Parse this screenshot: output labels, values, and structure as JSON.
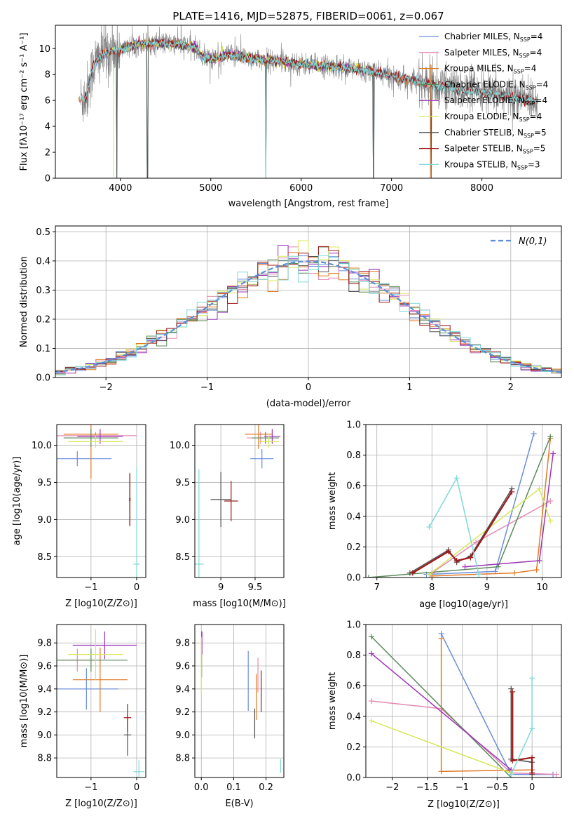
{
  "figure_title": "PLATE=1416, MJD=52875, FIBERID=0061, z=0.067",
  "colors": {
    "chabrier_miles": "#6a8ddc",
    "salpeter_miles": "#e48ab4",
    "kroupa_miles": "#e07a22",
    "chabrier_elodie": "#5a8a5a",
    "salpeter_elodie": "#9b35b8",
    "kroupa_elodie": "#d8e85a",
    "chabrier_stelib": "#505050",
    "salpeter_stelib": "#a01818",
    "kroupa_stelib": "#7fd9d9",
    "data_gray": "#808080",
    "normal_dash": "#5b8dd9"
  },
  "chart_data": [
    {
      "id": "spectrum",
      "type": "line",
      "title": "PLATE=1416, MJD=52875, FIBERID=0061, z=0.067",
      "xlabel": "wavelength [Angstrom, rest frame]",
      "ylabel": "Flux [fλ10⁻¹⁷ erg cm⁻² s⁻¹ A⁻¹]",
      "xlim": [
        3280,
        8880
      ],
      "ylim": [
        0,
        11.8
      ],
      "xticks": [
        4000,
        5000,
        6000,
        7000,
        8000
      ],
      "yticks": [
        0,
        2,
        4,
        6,
        8,
        10
      ],
      "legend": {
        "position": "top-right",
        "entries": [
          {
            "label": "Chabrier MILES, N",
            "sub": "SSP",
            "tail": "=4",
            "color": "chabrier_miles"
          },
          {
            "label": "Salpeter MILES, N",
            "sub": "SSP",
            "tail": "=4",
            "color": "salpeter_miles"
          },
          {
            "label": "Kroupa MILES, N",
            "sub": "SSP",
            "tail": "=4",
            "color": "kroupa_miles"
          },
          {
            "label": "Chabrier ELODIE, N",
            "sub": "SSP",
            "tail": "=4",
            "color": "chabrier_elodie"
          },
          {
            "label": "Salpeter ELODIE, N",
            "sub": "SSP",
            "tail": "=4",
            "color": "salpeter_elodie"
          },
          {
            "label": "Kroupa ELODIE, N",
            "sub": "SSP",
            "tail": "=4",
            "color": "kroupa_elodie"
          },
          {
            "label": "Chabrier STELIB, N",
            "sub": "SSP",
            "tail": "=5",
            "color": "chabrier_stelib"
          },
          {
            "label": "Salpeter STELIB, N",
            "sub": "SSP",
            "tail": "=5",
            "color": "salpeter_stelib"
          },
          {
            "label": "Kroupa STELIB, N",
            "sub": "SSP",
            "tail": "=3",
            "color": "kroupa_stelib"
          }
        ]
      },
      "continuum": {
        "x": [
          3560,
          3620,
          3700,
          3800,
          3900,
          4000,
          4100,
          4300,
          4500,
          4700,
          4850,
          4900,
          5000,
          5200,
          5400,
          5600,
          5800,
          6000,
          6200,
          6400,
          6600,
          6800,
          7000,
          7200,
          7400,
          7600,
          7800,
          8000,
          8200,
          8400,
          8600
        ],
        "y": [
          6.0,
          6.3,
          8.7,
          9.6,
          9.8,
          9.9,
          10.2,
          10.4,
          10.4,
          10.3,
          10.0,
          9.4,
          9.2,
          9.5,
          9.3,
          9.1,
          9.0,
          8.8,
          8.7,
          8.6,
          8.4,
          8.2,
          7.9,
          7.6,
          7.3,
          7.0,
          6.8,
          6.6,
          6.4,
          6.2,
          6.0
        ]
      },
      "deep_spikes": [
        3960,
        4300,
        5610,
        6800,
        7440
      ]
    },
    {
      "id": "residuals",
      "type": "step-histogram",
      "xlabel": "(data-model)/error",
      "ylabel": "Normed distribution",
      "xlim": [
        -2.5,
        2.5
      ],
      "ylim": [
        0,
        0.52
      ],
      "xticks": [
        -2,
        -1,
        0,
        1,
        2
      ],
      "yticks": [
        0.0,
        0.1,
        0.2,
        0.3,
        0.4,
        0.5
      ],
      "legend_label": "N(0,1)",
      "bin_width": 0.1
    },
    {
      "id": "age_vs_z",
      "type": "errorbar",
      "xlabel": "Z [log10(Z/Z⊙)]",
      "ylabel": "age [log10(age/yr)]",
      "xlim": [
        -1.75,
        0.2
      ],
      "ylim": [
        8.22,
        10.28
      ],
      "xticks": [
        -1,
        0
      ],
      "yticks": [
        8.5,
        9.0,
        9.5,
        10.0
      ],
      "points": [
        {
          "c": "chabrier_miles",
          "x": -1.3,
          "y": 9.82,
          "xe": 0.75,
          "ye": 0.1
        },
        {
          "c": "salpeter_miles",
          "x": -0.9,
          "y": 10.13,
          "xe": 0.9,
          "ye": 0.05
        },
        {
          "c": "kroupa_miles",
          "x": -1.0,
          "y": 10.15,
          "xe": 0.6,
          "ye": 0.6
        },
        {
          "c": "chabrier_elodie",
          "x": -1.0,
          "y": 10.1,
          "xe": 0.6,
          "ye": 0.12
        },
        {
          "c": "salpeter_elodie",
          "x": -0.8,
          "y": 10.12,
          "xe": 0.5,
          "ye": 0.1
        },
        {
          "c": "kroupa_elodie",
          "x": -0.9,
          "y": 10.05,
          "xe": 0.6,
          "ye": 0.08
        },
        {
          "c": "chabrier_stelib",
          "x": -0.15,
          "y": 9.28,
          "xe": 0.02,
          "ye": 0.35
        },
        {
          "c": "salpeter_stelib",
          "x": -0.15,
          "y": 9.26,
          "xe": 0.02,
          "ye": 0.35
        },
        {
          "c": "kroupa_stelib",
          "x": 0.0,
          "y": 8.4,
          "xe": 0.07,
          "ye": 1.3
        }
      ]
    },
    {
      "id": "age_vs_mass",
      "type": "errorbar",
      "xlabel": "mass [log10(M/M⊙)]",
      "ylabel": "",
      "xlim": [
        8.62,
        9.92
      ],
      "ylim": [
        8.22,
        10.28
      ],
      "xticks": [
        9.0,
        9.5
      ],
      "yticks": [
        8.5,
        9.0,
        9.5,
        10.0
      ],
      "points": [
        {
          "c": "chabrier_miles",
          "x": 9.6,
          "y": 9.82,
          "xe": 0.17,
          "ye": 0.13
        },
        {
          "c": "salpeter_miles",
          "x": 9.58,
          "y": 10.1,
          "xe": 0.2,
          "ye": 0.08
        },
        {
          "c": "kroupa_miles",
          "x": 9.55,
          "y": 10.15,
          "xe": 0.2,
          "ye": 0.2
        },
        {
          "c": "chabrier_elodie",
          "x": 9.65,
          "y": 10.1,
          "xe": 0.2,
          "ye": 0.08
        },
        {
          "c": "salpeter_elodie",
          "x": 9.75,
          "y": 10.12,
          "xe": 0.12,
          "ye": 0.1
        },
        {
          "c": "kroupa_elodie",
          "x": 9.7,
          "y": 10.05,
          "xe": 0.15,
          "ye": 0.08
        },
        {
          "c": "chabrier_stelib",
          "x": 9.0,
          "y": 9.27,
          "xe": 0.15,
          "ye": 0.37
        },
        {
          "c": "salpeter_stelib",
          "x": 9.15,
          "y": 9.25,
          "xe": 0.1,
          "ye": 0.27
        },
        {
          "c": "kroupa_stelib",
          "x": 8.68,
          "y": 8.4,
          "xe": 0.07,
          "ye": 1.28
        }
      ]
    },
    {
      "id": "weight_vs_age",
      "type": "line",
      "xlabel": "age [log10(age/yr)]",
      "ylabel": "mass weight",
      "xlim": [
        6.8,
        10.35
      ],
      "ylim": [
        0,
        1
      ],
      "xticks": [
        7,
        8,
        9,
        10
      ],
      "yticks": [
        0.0,
        0.2,
        0.4,
        0.6,
        0.8,
        1.0
      ],
      "series": [
        {
          "c": "chabrier_miles",
          "x": [
            7.9,
            9.15,
            9.85
          ],
          "y": [
            0.02,
            0.04,
            0.94
          ]
        },
        {
          "c": "salpeter_miles",
          "x": [
            8.0,
            8.8,
            10.15
          ],
          "y": [
            0.03,
            0.23,
            0.5
          ]
        },
        {
          "c": "kroupa_miles",
          "x": [
            8.0,
            9.5,
            9.9,
            10.15
          ],
          "y": [
            0.01,
            0.03,
            0.05,
            0.91
          ]
        },
        {
          "c": "chabrier_elodie",
          "x": [
            6.85,
            9.2,
            10.15
          ],
          "y": [
            0.0,
            0.07,
            0.92
          ]
        },
        {
          "c": "salpeter_elodie",
          "x": [
            8.6,
            9.95,
            10.2
          ],
          "y": [
            0.07,
            0.11,
            0.81
          ]
        },
        {
          "c": "kroupa_elodie",
          "x": [
            7.95,
            9.95,
            10.15
          ],
          "y": [
            0.02,
            0.58,
            0.37
          ]
        },
        {
          "c": "chabrier_stelib",
          "x": [
            7.6,
            8.3,
            8.45,
            8.7,
            9.45
          ],
          "y": [
            0.03,
            0.18,
            0.1,
            0.14,
            0.58
          ]
        },
        {
          "c": "salpeter_stelib",
          "x": [
            7.65,
            8.3,
            8.45,
            8.7,
            9.45
          ],
          "y": [
            0.03,
            0.17,
            0.11,
            0.13,
            0.56
          ]
        },
        {
          "c": "kroupa_stelib",
          "x": [
            7.95,
            8.45,
            8.85
          ],
          "y": [
            0.33,
            0.65,
            0.02
          ]
        }
      ]
    },
    {
      "id": "mass_vs_z",
      "type": "errorbar",
      "xlabel": "Z [log10(Z/Z⊙)]",
      "ylabel": "mass [log10(M/M⊙)]",
      "xlim": [
        -1.75,
        0.2
      ],
      "ylim": [
        8.63,
        9.96
      ],
      "xticks": [
        -1,
        0
      ],
      "yticks": [
        8.8,
        9.0,
        9.2,
        9.4,
        9.6,
        9.8
      ],
      "points": [
        {
          "c": "chabrier_miles",
          "x": -1.1,
          "y": 9.4,
          "xe": 0.7,
          "ye": 0.18
        },
        {
          "c": "salpeter_miles",
          "x": -1.3,
          "y": 9.65,
          "xe": 0.4,
          "ye": 0.1
        },
        {
          "c": "kroupa_miles",
          "x": -0.8,
          "y": 9.48,
          "xe": 0.6,
          "ye": 0.28
        },
        {
          "c": "chabrier_elodie",
          "x": -1.0,
          "y": 9.65,
          "xe": 0.8,
          "ye": 0.1
        },
        {
          "c": "salpeter_elodie",
          "x": -0.7,
          "y": 9.78,
          "xe": 0.7,
          "ye": 0.12
        },
        {
          "c": "kroupa_elodie",
          "x": -0.9,
          "y": 9.7,
          "xe": 0.6,
          "ye": 0.22
        },
        {
          "c": "chabrier_stelib",
          "x": -0.2,
          "y": 9.0,
          "xe": 0.08,
          "ye": 0.18
        },
        {
          "c": "salpeter_stelib",
          "x": -0.2,
          "y": 9.15,
          "xe": 0.08,
          "ye": 0.12
        },
        {
          "c": "kroupa_stelib",
          "x": 0.05,
          "y": 8.68,
          "xe": 0.12,
          "ye": 0.1
        }
      ]
    },
    {
      "id": "mass_vs_ebv",
      "type": "errorbar",
      "xlabel": "E(B-V)",
      "ylabel": "",
      "xlim": [
        -0.02,
        0.255
      ],
      "ylim": [
        8.63,
        9.96
      ],
      "xticks": [
        0.0,
        0.1,
        0.2
      ],
      "yticks": [
        8.8,
        9.0,
        9.2,
        9.4,
        9.6,
        9.8
      ],
      "points": [
        {
          "c": "chabrier_miles",
          "x": 0.145,
          "y": 9.47,
          "ye": 0.26
        },
        {
          "c": "salpeter_miles",
          "x": 0.175,
          "y": 9.52,
          "ye": 0.15
        },
        {
          "c": "kroupa_miles",
          "x": 0.17,
          "y": 9.33,
          "ye": 0.2
        },
        {
          "c": "chabrier_elodie",
          "x": 0.001,
          "y": 9.7,
          "ye": 0.2
        },
        {
          "c": "salpeter_elodie",
          "x": 0.002,
          "y": 9.8,
          "ye": 0.1
        },
        {
          "c": "kroupa_elodie",
          "x": 0.0,
          "y": 9.6,
          "ye": 0.25
        },
        {
          "c": "chabrier_stelib",
          "x": 0.165,
          "y": 9.1,
          "ye": 0.13
        },
        {
          "c": "salpeter_stelib",
          "x": 0.185,
          "y": 9.38,
          "ye": 0.18
        },
        {
          "c": "kroupa_stelib",
          "x": 0.245,
          "y": 8.73,
          "ye": 0.06
        }
      ]
    },
    {
      "id": "weight_vs_z",
      "type": "line",
      "xlabel": "Z [log10(Z/Z⊙)]",
      "ylabel": "mass weight",
      "xlim": [
        -2.38,
        0.42
      ],
      "ylim": [
        0,
        1
      ],
      "xticks": [
        -2.0,
        -1.5,
        -1.0,
        -0.5,
        0.0
      ],
      "yticks": [
        0.0,
        0.2,
        0.4,
        0.6,
        0.8,
        1.0
      ],
      "series": [
        {
          "c": "chabrier_miles",
          "x": [
            -1.3,
            -0.3,
            0.3
          ],
          "y": [
            0.94,
            0.02,
            0.02
          ]
        },
        {
          "c": "salpeter_miles",
          "x": [
            -2.3,
            -1.3,
            -0.3,
            0.35
          ],
          "y": [
            0.5,
            0.45,
            0.03,
            0.02
          ]
        },
        {
          "c": "kroupa_miles",
          "x": [
            -1.3,
            -1.3,
            0.0
          ],
          "y": [
            0.91,
            0.04,
            0.05
          ]
        },
        {
          "c": "chabrier_elodie",
          "x": [
            -2.3,
            -0.3
          ],
          "y": [
            0.92,
            0.0
          ]
        },
        {
          "c": "salpeter_elodie",
          "x": [
            -2.3,
            -0.3
          ],
          "y": [
            0.81,
            0.05
          ]
        },
        {
          "c": "kroupa_elodie",
          "x": [
            -2.3,
            -0.3
          ],
          "y": [
            0.37,
            0.03
          ]
        },
        {
          "c": "chabrier_stelib",
          "x": [
            -0.3,
            -0.3,
            0.0,
            0.0
          ],
          "y": [
            0.58,
            0.12,
            0.1,
            0.02
          ]
        },
        {
          "c": "salpeter_stelib",
          "x": [
            -0.28,
            -0.28,
            0.0,
            0.0
          ],
          "y": [
            0.56,
            0.11,
            0.13,
            0.03
          ]
        },
        {
          "c": "kroupa_stelib",
          "x": [
            0.0,
            0.0,
            -0.3
          ],
          "y": [
            0.65,
            0.32,
            0.02
          ]
        }
      ]
    }
  ]
}
